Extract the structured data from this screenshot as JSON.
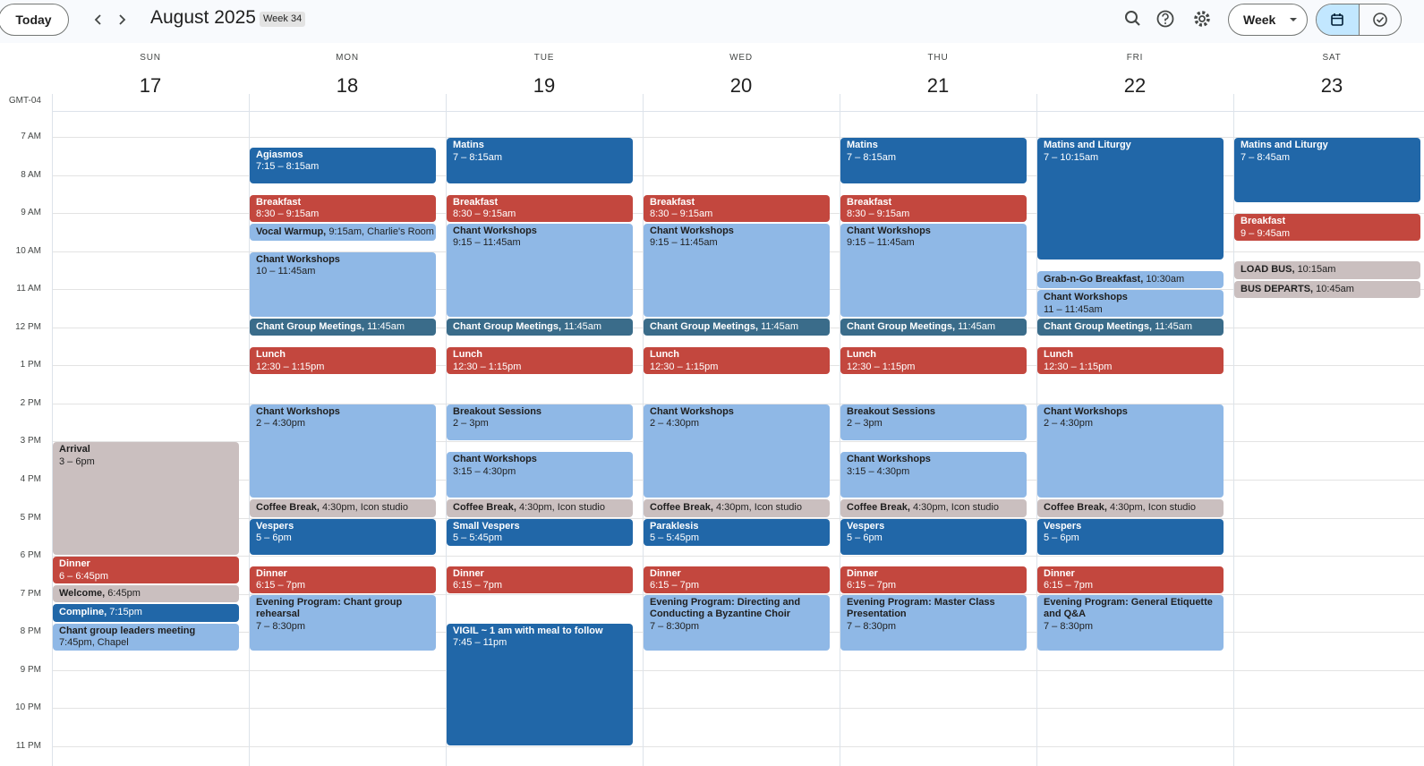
{
  "toolbar": {
    "today": "Today",
    "title": "August 2025",
    "week_badge": "Week 34",
    "view": "Week"
  },
  "timezone": "GMT-04",
  "hours": [
    "7 AM",
    "8 AM",
    "9 AM",
    "10 AM",
    "11 AM",
    "12 PM",
    "1 PM",
    "2 PM",
    "3 PM",
    "4 PM",
    "5 PM",
    "6 PM",
    "7 PM",
    "8 PM",
    "9 PM",
    "10 PM",
    "11 PM"
  ],
  "days": [
    {
      "name": "SUN",
      "date": "17",
      "events": [
        {
          "title": "Arrival",
          "time": "3 – 6pm"
        },
        {
          "title": "Dinner",
          "time": "6 – 6:45pm"
        },
        {
          "title": "Welcome,",
          "time": "6:45pm"
        },
        {
          "title": "Compline,",
          "time": "7:15pm"
        },
        {
          "title": "Chant group leaders meeting",
          "time": "7:45pm, Chapel"
        }
      ]
    },
    {
      "name": "MON",
      "date": "18",
      "events": [
        {
          "title": "Agiasmos",
          "time": "7:15 – 8:15am"
        },
        {
          "title": "Breakfast",
          "time": "8:30 – 9:15am"
        },
        {
          "title": "Vocal Warmup,",
          "time": "9:15am, Charlie's Room"
        },
        {
          "title": "Chant Workshops",
          "time": "10 – 11:45am"
        },
        {
          "title": "Chant Group Meetings,",
          "time": "11:45am"
        },
        {
          "title": "Lunch",
          "time": "12:30 – 1:15pm"
        },
        {
          "title": "Chant Workshops",
          "time": "2 – 4:30pm"
        },
        {
          "title": "Coffee Break,",
          "time": "4:30pm, Icon studio"
        },
        {
          "title": "Vespers",
          "time": "5 – 6pm"
        },
        {
          "title": "Dinner",
          "time": "6:15 – 7pm"
        },
        {
          "title": "Evening Program: Chant group rehearsal",
          "time": "7 – 8:30pm"
        }
      ]
    },
    {
      "name": "TUE",
      "date": "19",
      "events": [
        {
          "title": "Matins",
          "time": "7 – 8:15am"
        },
        {
          "title": "Breakfast",
          "time": "8:30 – 9:15am"
        },
        {
          "title": "Chant Workshops",
          "time": "9:15 – 11:45am"
        },
        {
          "title": "Chant Group Meetings,",
          "time": "11:45am"
        },
        {
          "title": "Lunch",
          "time": "12:30 – 1:15pm"
        },
        {
          "title": "Breakout Sessions",
          "time": "2 – 3pm"
        },
        {
          "title": "Chant Workshops",
          "time": "3:15 – 4:30pm"
        },
        {
          "title": "Coffee Break,",
          "time": "4:30pm, Icon studio"
        },
        {
          "title": "Small Vespers",
          "time": "5 – 5:45pm"
        },
        {
          "title": "Dinner",
          "time": "6:15 – 7pm"
        },
        {
          "title": "VIGIL ~ 1 am with meal to follow",
          "time": "7:45 – 11pm"
        }
      ]
    },
    {
      "name": "WED",
      "date": "20",
      "events": [
        {
          "title": "Breakfast",
          "time": "8:30 – 9:15am"
        },
        {
          "title": "Chant Workshops",
          "time": "9:15 – 11:45am"
        },
        {
          "title": "Chant Group Meetings,",
          "time": "11:45am"
        },
        {
          "title": "Lunch",
          "time": "12:30 – 1:15pm"
        },
        {
          "title": "Chant Workshops",
          "time": "2 – 4:30pm"
        },
        {
          "title": "Coffee Break,",
          "time": "4:30pm, Icon studio"
        },
        {
          "title": "Paraklesis",
          "time": "5 – 5:45pm"
        },
        {
          "title": "Dinner",
          "time": "6:15 – 7pm"
        },
        {
          "title": "Evening Program: Directing and Conducting a Byzantine Choir",
          "time": "7 – 8:30pm"
        }
      ]
    },
    {
      "name": "THU",
      "date": "21",
      "events": [
        {
          "title": "Matins",
          "time": "7 – 8:15am"
        },
        {
          "title": "Breakfast",
          "time": "8:30 – 9:15am"
        },
        {
          "title": "Chant Workshops",
          "time": "9:15 – 11:45am"
        },
        {
          "title": "Chant Group Meetings,",
          "time": "11:45am"
        },
        {
          "title": "Lunch",
          "time": "12:30 – 1:15pm"
        },
        {
          "title": "Breakout Sessions",
          "time": "2 – 3pm"
        },
        {
          "title": "Chant Workshops",
          "time": "3:15 – 4:30pm"
        },
        {
          "title": "Coffee Break,",
          "time": "4:30pm, Icon studio"
        },
        {
          "title": "Vespers",
          "time": "5 – 6pm"
        },
        {
          "title": "Dinner",
          "time": "6:15 – 7pm"
        },
        {
          "title": "Evening Program: Master Class Presentation",
          "time": "7 – 8:30pm"
        }
      ]
    },
    {
      "name": "FRI",
      "date": "22",
      "events": [
        {
          "title": "Matins and Liturgy",
          "time": "7 – 10:15am"
        },
        {
          "title": "Grab-n-Go Breakfast,",
          "time": "10:30am"
        },
        {
          "title": "Chant Workshops",
          "time": "11 – 11:45am"
        },
        {
          "title": "Chant Group Meetings,",
          "time": "11:45am"
        },
        {
          "title": "Lunch",
          "time": "12:30 – 1:15pm"
        },
        {
          "title": "Chant Workshops",
          "time": "2 – 4:30pm"
        },
        {
          "title": "Coffee Break,",
          "time": "4:30pm, Icon studio"
        },
        {
          "title": "Vespers",
          "time": "5 – 6pm"
        },
        {
          "title": "Dinner",
          "time": "6:15 – 7pm"
        },
        {
          "title": "Evening Program: General Etiquette and Q&A",
          "time": "7 – 8:30pm"
        }
      ]
    },
    {
      "name": "SAT",
      "date": "23",
      "events": [
        {
          "title": "Matins and Liturgy",
          "time": "7 – 8:45am"
        },
        {
          "title": "Breakfast",
          "time": "9 – 9:45am"
        },
        {
          "title": "LOAD BUS,",
          "time": "10:15am"
        },
        {
          "title": "BUS DEPARTS,",
          "time": "10:45am"
        }
      ]
    }
  ]
}
